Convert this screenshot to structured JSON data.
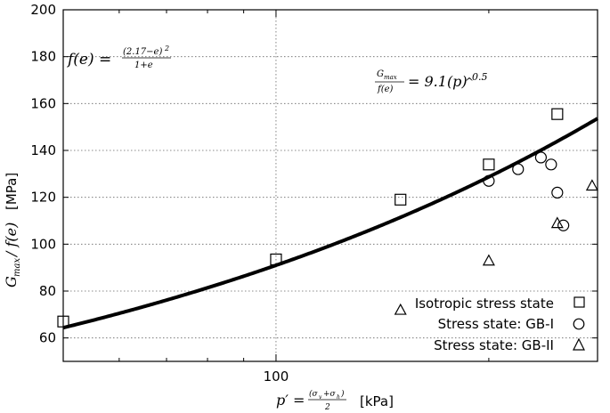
{
  "chart_data": {
    "type": "scatter",
    "xscale": "log",
    "xlim": [
      50,
      285
    ],
    "ylim": [
      50,
      200
    ],
    "xticks": [
      {
        "value": 100,
        "label": "100"
      }
    ],
    "yticks": [
      {
        "value": 60,
        "label": "60"
      },
      {
        "value": 80,
        "label": "80"
      },
      {
        "value": 100,
        "label": "100"
      },
      {
        "value": 120,
        "label": "120"
      },
      {
        "value": 140,
        "label": "140"
      },
      {
        "value": 160,
        "label": "160"
      },
      {
        "value": 180,
        "label": "180"
      },
      {
        "value": 200,
        "label": "200"
      }
    ],
    "xlabel_unit": "[kPa]",
    "ylabel_unit": "[MPa]",
    "grid": "dotted",
    "legend_position": "bottom-right",
    "series": [
      {
        "name": "Isotropic stress state",
        "marker": "square",
        "points": [
          [
            50,
            67
          ],
          [
            100,
            93.5
          ],
          [
            150,
            119
          ],
          [
            200,
            134
          ],
          [
            250,
            155.5
          ]
        ]
      },
      {
        "name": "Stress state:  GB-I",
        "marker": "circle",
        "points": [
          [
            200,
            127
          ],
          [
            220,
            132
          ],
          [
            237,
            137
          ],
          [
            245,
            134
          ],
          [
            250,
            122
          ],
          [
            255,
            108
          ]
        ]
      },
      {
        "name": "Stress state:  GB-II",
        "marker": "triangle",
        "points": [
          [
            150,
            72
          ],
          [
            200,
            93
          ],
          [
            250,
            109
          ],
          [
            280,
            125
          ]
        ]
      }
    ],
    "fit": {
      "coefficient": 9.1,
      "exponent": 0.5,
      "color": "#000000"
    }
  }
}
